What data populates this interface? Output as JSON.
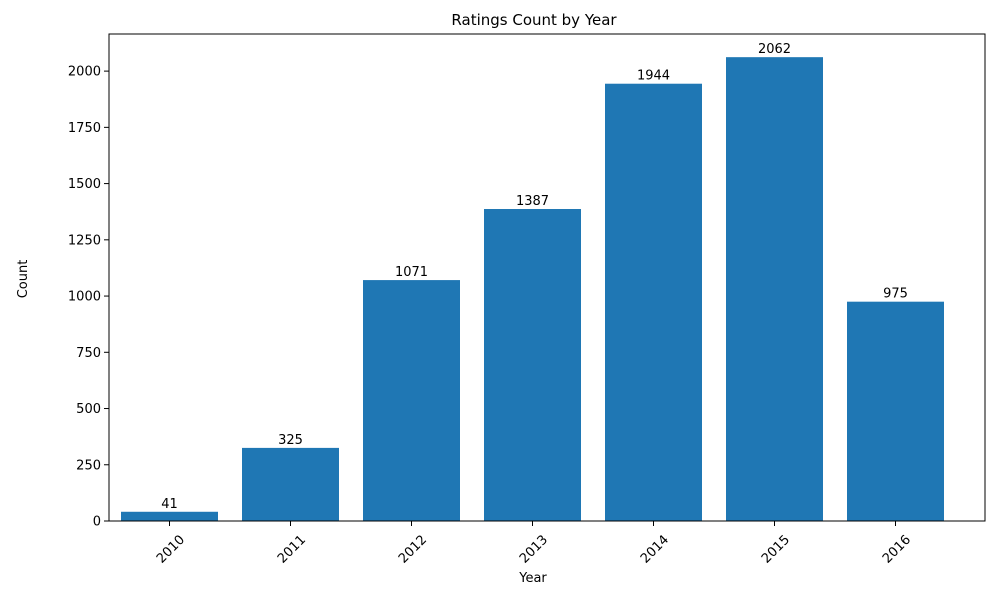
{
  "chart_data": {
    "type": "bar",
    "title": "Ratings Count by Year",
    "xlabel": "Year",
    "ylabel": "Count",
    "categories": [
      "2010",
      "2011",
      "2012",
      "2013",
      "2014",
      "2015",
      "2016"
    ],
    "values": [
      41,
      325,
      1071,
      1387,
      1944,
      2062,
      975
    ],
    "ylim": [
      0,
      2165
    ],
    "yticks": [
      0,
      250,
      500,
      750,
      1000,
      1250,
      1500,
      1750,
      2000
    ],
    "bar_color": "#1f77b4",
    "grid": false,
    "legend": "none",
    "xtick_rotation": 45
  }
}
